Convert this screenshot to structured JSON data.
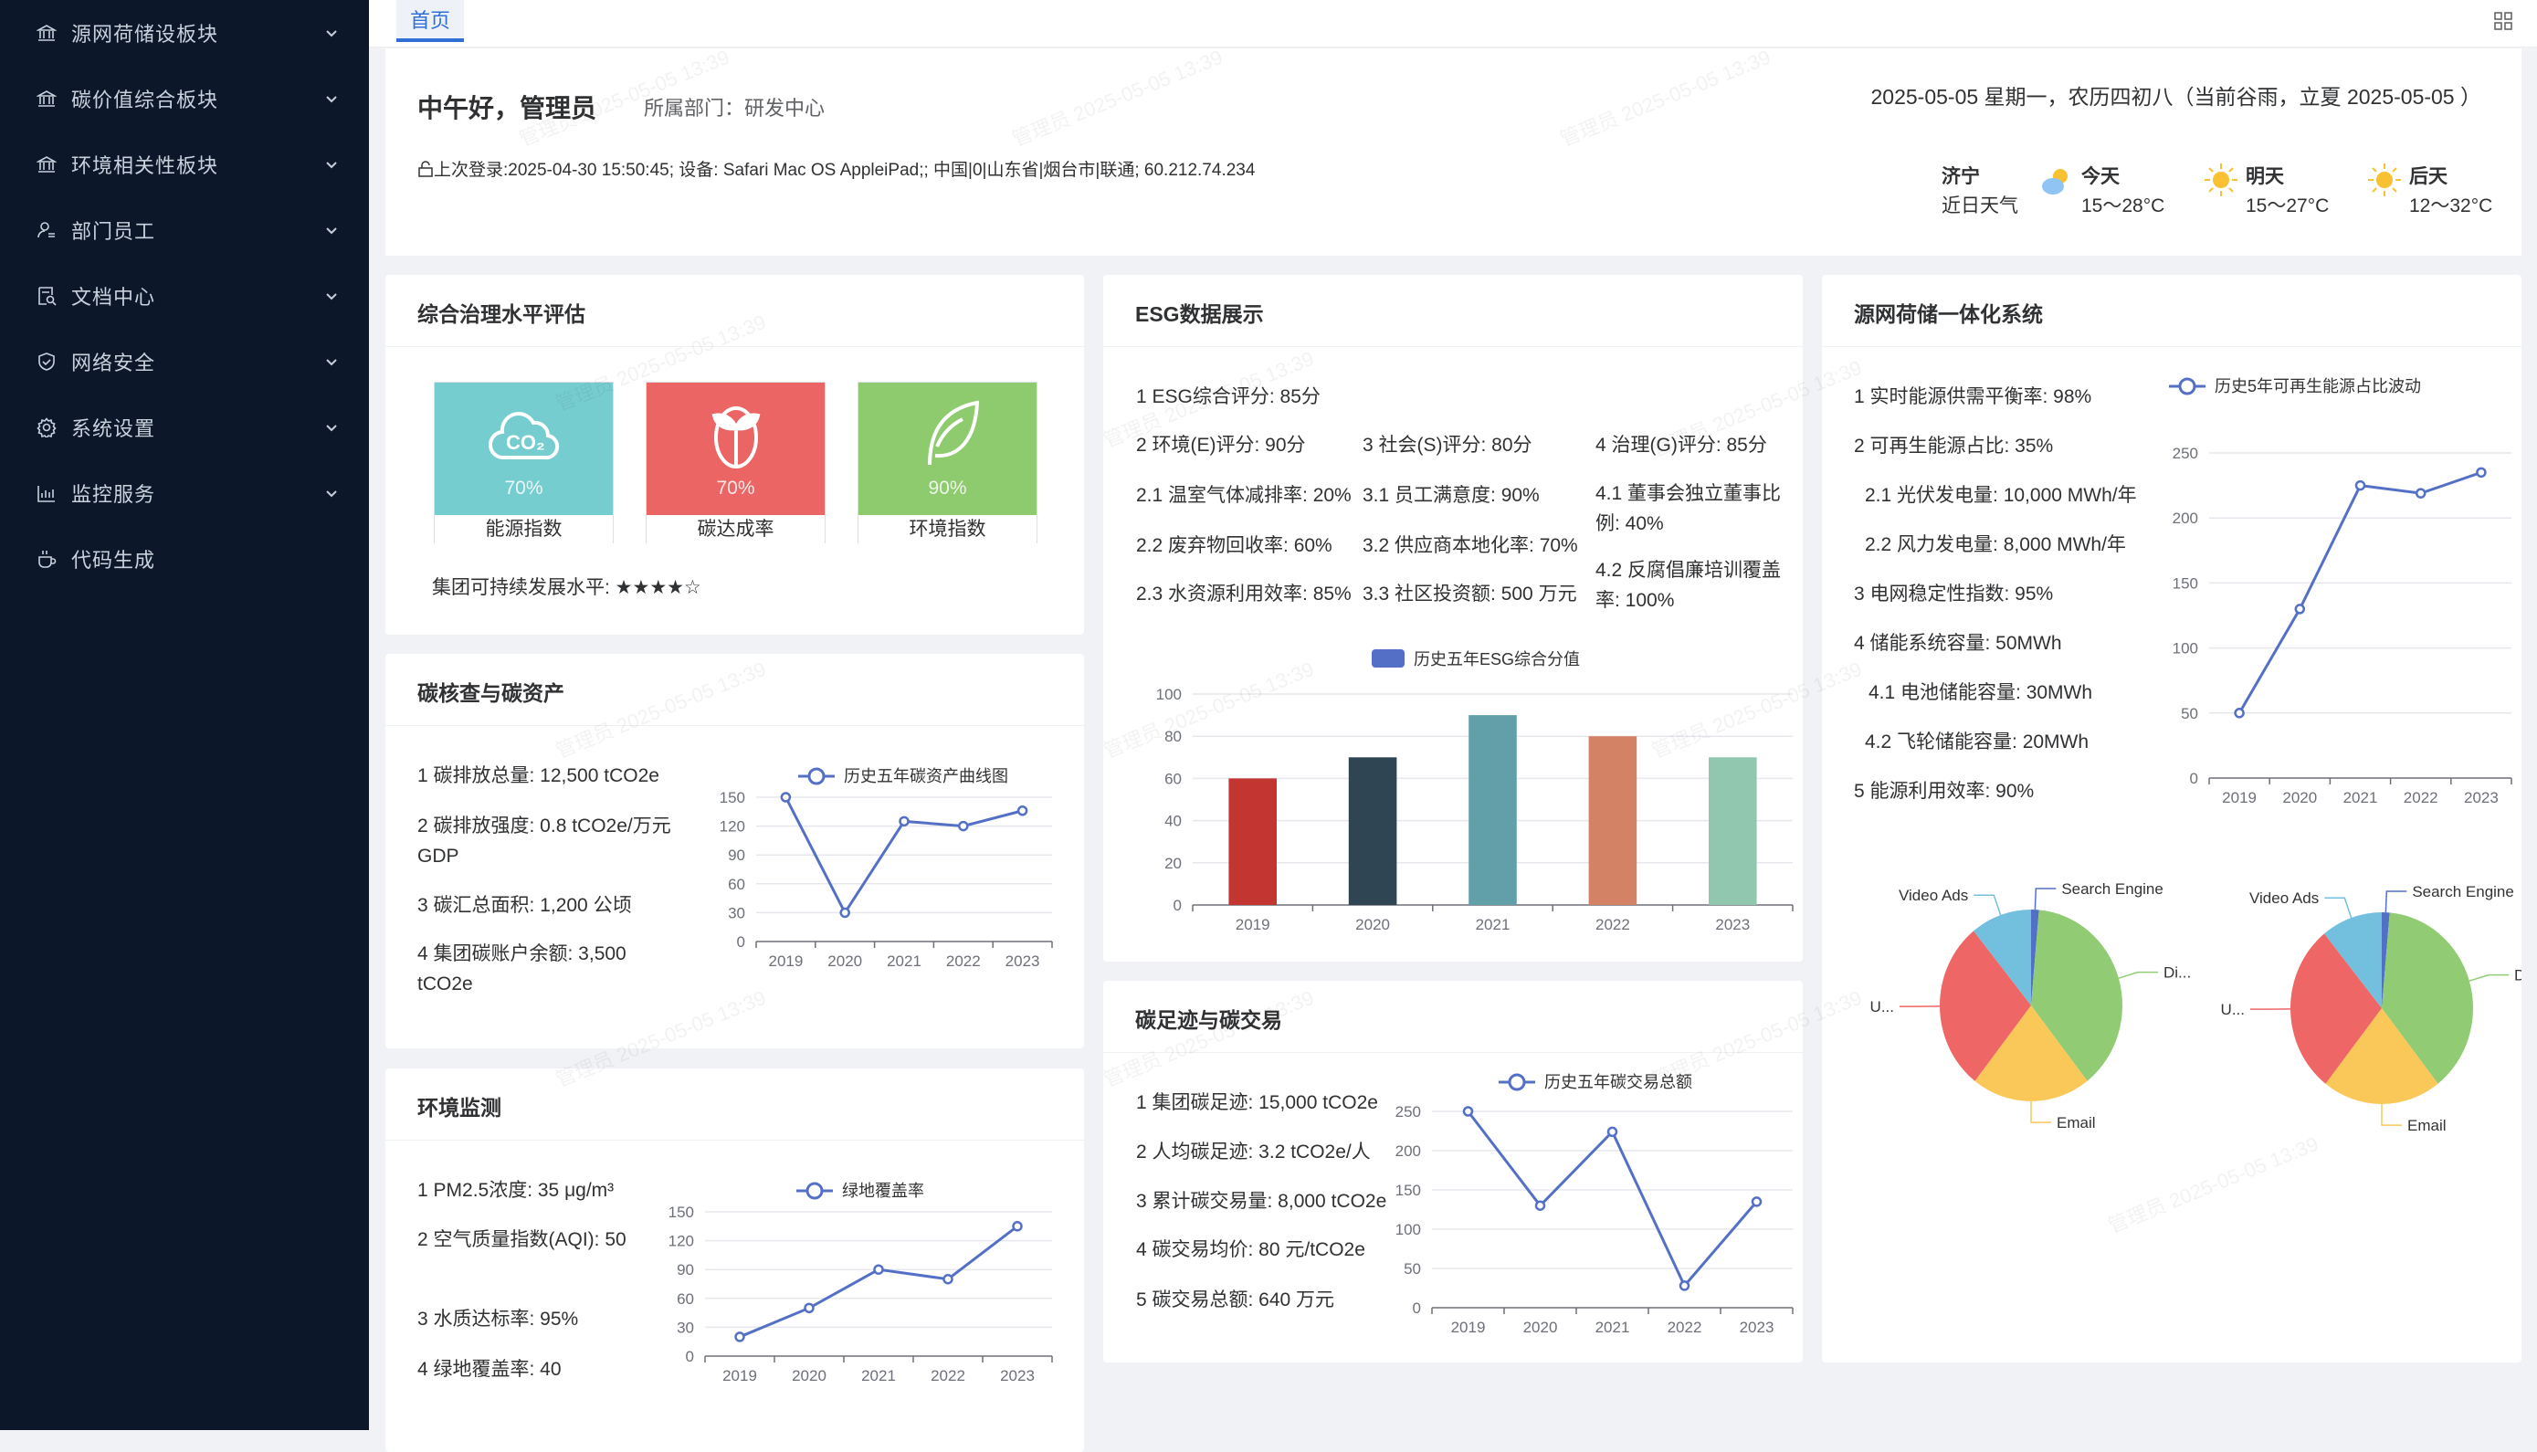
{
  "sidebar": {
    "items": [
      {
        "label": "源网荷储设板块",
        "icon": "bank-icon",
        "expandable": true
      },
      {
        "label": "碳价值综合板块",
        "icon": "bank-icon",
        "expandable": true
      },
      {
        "label": "环境相关性板块",
        "icon": "bank-icon",
        "expandable": true
      },
      {
        "label": "部门员工",
        "icon": "user-icon",
        "expandable": true
      },
      {
        "label": "文档中心",
        "icon": "document-search-icon",
        "expandable": true
      },
      {
        "label": "网络安全",
        "icon": "shield-icon",
        "expandable": true
      },
      {
        "label": "系统设置",
        "icon": "gear-icon",
        "expandable": true
      },
      {
        "label": "监控服务",
        "icon": "bar-chart-icon",
        "expandable": true
      },
      {
        "label": "代码生成",
        "icon": "cup-icon",
        "expandable": false
      }
    ]
  },
  "tabs": [
    {
      "label": "首页",
      "active": true
    }
  ],
  "header": {
    "greeting": "中午好，管理员",
    "department": "所属部门：研发中心",
    "last_login": "上次登录:2025-04-30 15:50:45; 设备: Safari Mac OS AppleiPad;; 中国|0|山东省|烟台市|联通; 60.212.74.234",
    "date_line": "2025-05-05 星期一，农历四初八（当前谷雨，立夏 2025-05-05 ）",
    "weather": {
      "city": "济宁",
      "caption": "近日天气",
      "days": [
        {
          "label": "今天",
          "range": "15～28°C",
          "icon": "partly-cloudy-icon"
        },
        {
          "label": "明天",
          "range": "15～27°C",
          "icon": "sun-icon"
        },
        {
          "label": "后天",
          "range": "12～32°C",
          "icon": "sun-icon"
        }
      ]
    }
  },
  "watermark": "管理员 2025-05-05 13:39",
  "governance": {
    "title": "综合治理水平评估",
    "tiles": [
      {
        "name": "能源指数",
        "value": "70%",
        "color": "#76cdd0",
        "icon": "co2-cloud-icon"
      },
      {
        "name": "碳达成率",
        "value": "70%",
        "color": "#eb6565",
        "icon": "sprout-icon"
      },
      {
        "name": "环境指数",
        "value": "90%",
        "color": "#8ecb6e",
        "icon": "leaf-icon"
      }
    ],
    "sustainability": "集团可持续发展水平: ★★★★☆",
    "stars": 4
  },
  "carbon": {
    "title": "碳核查与碳资产",
    "items": [
      "1 碳排放总量: 12,500 tCO2e",
      "2 碳排放强度: 0.8 tCO2e/万元 GDP",
      "3 碳汇总面积: 1,200 公顷",
      "4 集团碳账户余额: 3,500 tCO2e"
    ]
  },
  "environment": {
    "title": "环境监测",
    "items": [
      "1 PM2.5浓度: 35 μg/m³",
      "2 空气质量指数(AQI): 50",
      "3 水质达标率: 95%",
      "4 绿地覆盖率: 40"
    ]
  },
  "esg": {
    "title": "ESG数据展示",
    "overall": "1 ESG综合评分: 85分",
    "columns": [
      [
        "2 环境(E)评分: 90分",
        "2.1 温室气体减排率: 20%",
        "2.2 废弃物回收率: 60%",
        "2.3 水资源利用效率: 85%"
      ],
      [
        "3 社会(S)评分: 80分",
        "3.1 员工满意度: 90%",
        "3.2 供应商本地化率: 70%",
        "3.3 社区投资额: 500 万元"
      ],
      [
        "4 治理(G)评分: 85分",
        "4.1 董事会独立董事比例: 40%",
        "4.2 反腐倡廉培训覆盖率: 100%"
      ]
    ]
  },
  "footprint": {
    "title": "碳足迹与碳交易",
    "items": [
      "1 集团碳足迹: 15,000 tCO2e",
      "2 人均碳足迹: 3.2 tCO2e/人",
      "3 累计碳交易量: 8,000 tCO2e",
      "4 碳交易均价: 80 元/tCO2e",
      "5 碳交易总额: 640 万元"
    ]
  },
  "grid": {
    "title": "源网荷储一体化系统",
    "items": [
      {
        "text": "1 实时能源供需平衡率: 98%",
        "indent": 0
      },
      {
        "text": "2 可再生能源占比: 35%",
        "indent": 0
      },
      {
        "text": "2.1 光伏发电量: 10,000 MWh/年",
        "indent": 1
      },
      {
        "text": "2.2 风力发电量: 8,000 MWh/年",
        "indent": 1
      },
      {
        "text": "3 电网稳定性指数: 95%",
        "indent": 0
      },
      {
        "text": "4 储能系统容量: 50MWh",
        "indent": 0
      },
      {
        "text": "4.1 电池储能容量: 30MWh",
        "indent": 1
      },
      {
        "text": "4.2 飞轮储能容量: 20MWh",
        "indent": 1
      },
      {
        "text": "5 能源利用效率: 90%",
        "indent": 0
      }
    ]
  },
  "chart_data": [
    {
      "id": "carbon-asset",
      "type": "line",
      "categories": [
        "2019",
        "2020",
        "2021",
        "2022",
        "2023"
      ],
      "series": [
        {
          "name": "历史五年碳资产曲线图",
          "values": [
            150,
            30,
            125,
            120,
            136
          ]
        }
      ],
      "ylim": [
        0,
        150
      ],
      "yticks": [
        0,
        30,
        60,
        90,
        120,
        150
      ],
      "grid": true,
      "legend": "top",
      "color": "#5470c6"
    },
    {
      "id": "green-coverage",
      "type": "line",
      "categories": [
        "2019",
        "2020",
        "2021",
        "2022",
        "2023"
      ],
      "series": [
        {
          "name": "绿地覆盖率",
          "values": [
            20,
            50,
            90,
            80,
            135
          ]
        }
      ],
      "ylim": [
        0,
        150
      ],
      "yticks": [
        0,
        30,
        60,
        90,
        120,
        150
      ],
      "grid": true,
      "legend": "top",
      "color": "#5470c6"
    },
    {
      "id": "esg-history",
      "type": "bar",
      "categories": [
        "2019",
        "2020",
        "2021",
        "2022",
        "2023"
      ],
      "series": [
        {
          "name": "历史五年ESG综合分值",
          "values": [
            60,
            70,
            90,
            80,
            70
          ]
        }
      ],
      "bar_colors": [
        "#c23531",
        "#2f4554",
        "#61a0a8",
        "#d48265",
        "#91c7ae"
      ],
      "legend_color": "#5470c6",
      "ylim": [
        0,
        100
      ],
      "yticks": [
        0,
        20,
        40,
        60,
        80,
        100
      ],
      "grid": true,
      "legend": "top"
    },
    {
      "id": "carbon-trade",
      "type": "line",
      "categories": [
        "2019",
        "2020",
        "2021",
        "2022",
        "2023"
      ],
      "series": [
        {
          "name": "历史五年碳交易总额",
          "values": [
            250,
            130,
            224,
            28,
            135
          ]
        }
      ],
      "ylim": [
        0,
        250
      ],
      "yticks": [
        0,
        50,
        100,
        150,
        200,
        250
      ],
      "grid": true,
      "legend": "top",
      "color": "#5470c6"
    },
    {
      "id": "renewable",
      "type": "line",
      "categories": [
        "2019",
        "2020",
        "2021",
        "2022",
        "2023"
      ],
      "series": [
        {
          "name": "历史5年可再生能源占比波动",
          "values": [
            50,
            130,
            225,
            219,
            235
          ]
        }
      ],
      "ylim": [
        0,
        250
      ],
      "yticks": [
        0,
        50,
        100,
        150,
        200,
        250
      ],
      "grid": true,
      "legend": "top",
      "color": "#5470c6"
    },
    {
      "id": "pie-left",
      "type": "pie",
      "slices": [
        {
          "label": "Search Engine",
          "value": 5,
          "color": "#5470c6"
        },
        {
          "label": "Di...",
          "value": 137,
          "color": "#91cc75"
        },
        {
          "label": "Email",
          "value": 76,
          "color": "#fac858"
        },
        {
          "label": "U...",
          "value": 103,
          "color": "#ee6666"
        },
        {
          "label": "Video Ads",
          "value": 39,
          "color": "#73c0de"
        }
      ]
    },
    {
      "id": "pie-right",
      "type": "pie",
      "slices": [
        {
          "label": "Search Engine",
          "value": 5,
          "color": "#5470c6"
        },
        {
          "label": "Di..",
          "value": 137,
          "color": "#91cc75"
        },
        {
          "label": "Email",
          "value": 76,
          "color": "#fac858"
        },
        {
          "label": "U...",
          "value": 103,
          "color": "#ee6666"
        },
        {
          "label": "Video Ads",
          "value": 39,
          "color": "#73c0de"
        }
      ]
    }
  ]
}
